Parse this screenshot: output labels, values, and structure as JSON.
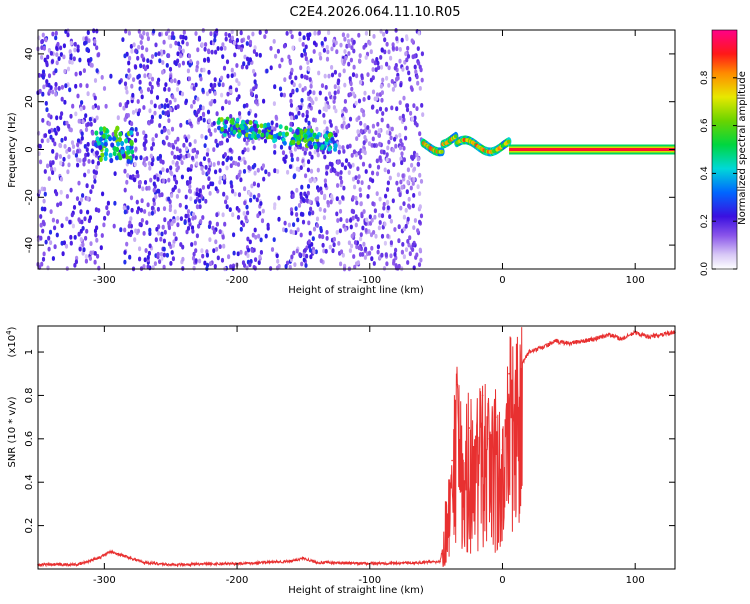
{
  "title": "C2E4.2026.064.11.10.R05",
  "chart_data": [
    {
      "type": "heatmap",
      "xlabel": "Height of straight line (km)",
      "ylabel": "Frequency (Hz)",
      "xlim": [
        -350,
        130
      ],
      "ylim": [
        -50,
        50
      ],
      "xticks": [
        -300,
        -200,
        -100,
        0,
        100
      ],
      "yticks": [
        -40,
        -20,
        0,
        20,
        40
      ],
      "colorbar": {
        "label": "Normalized spectral amplitude",
        "range": [
          0,
          1
        ],
        "ticks": [
          0.0,
          0.2,
          0.4,
          0.6,
          0.8
        ]
      },
      "features": [
        {
          "x_range": [
            -350,
            -60
          ],
          "intensity": 0.2,
          "note": "broadband noise"
        },
        {
          "x": -295,
          "freq": 2,
          "intensity": 0.45
        },
        {
          "x_range": [
            -215,
            -125
          ],
          "freq_start": 10,
          "freq_end": 3,
          "intensity": 0.45
        },
        {
          "x_range": [
            -60,
            5
          ],
          "freq": 1.5,
          "intensity": 0.8
        },
        {
          "x_range": [
            5,
            130
          ],
          "freq": 0,
          "intensity": 0.92
        }
      ]
    },
    {
      "type": "line",
      "xlabel": "Height of straight line (km)",
      "ylabel": "SNR (10 * v/v)",
      "multiplier_label": "(x10",
      "multiplier_exp": "4",
      "xlim": [
        -350,
        130
      ],
      "ylim": [
        0,
        1.12
      ],
      "xticks": [
        -300,
        -200,
        -100,
        0,
        100
      ],
      "yticks": [
        0.2,
        0.4,
        0.6,
        0.8,
        1.0
      ],
      "yticklabels": [
        "0.2",
        "0.4",
        "0.6",
        "0.8",
        "1"
      ],
      "line_color": "#e83030",
      "x": [
        -350,
        -320,
        -305,
        -295,
        -285,
        -270,
        -250,
        -200,
        -160,
        -150,
        -140,
        -100,
        -60,
        -47,
        -42,
        -38,
        -34,
        -30,
        -25,
        -20,
        -15,
        -10,
        -5,
        0,
        5,
        10,
        15,
        20,
        30,
        40,
        50,
        60,
        70,
        80,
        90,
        100,
        110,
        120,
        130
      ],
      "values": [
        0.02,
        0.02,
        0.05,
        0.08,
        0.06,
        0.03,
        0.02,
        0.025,
        0.035,
        0.05,
        0.03,
        0.025,
        0.03,
        0.035,
        0.2,
        0.5,
        0.85,
        0.45,
        0.65,
        0.55,
        0.8,
        0.6,
        0.7,
        0.55,
        0.9,
        0.85,
        0.95,
        1.0,
        1.02,
        1.05,
        1.04,
        1.05,
        1.06,
        1.08,
        1.06,
        1.09,
        1.07,
        1.08,
        1.09
      ]
    }
  ]
}
